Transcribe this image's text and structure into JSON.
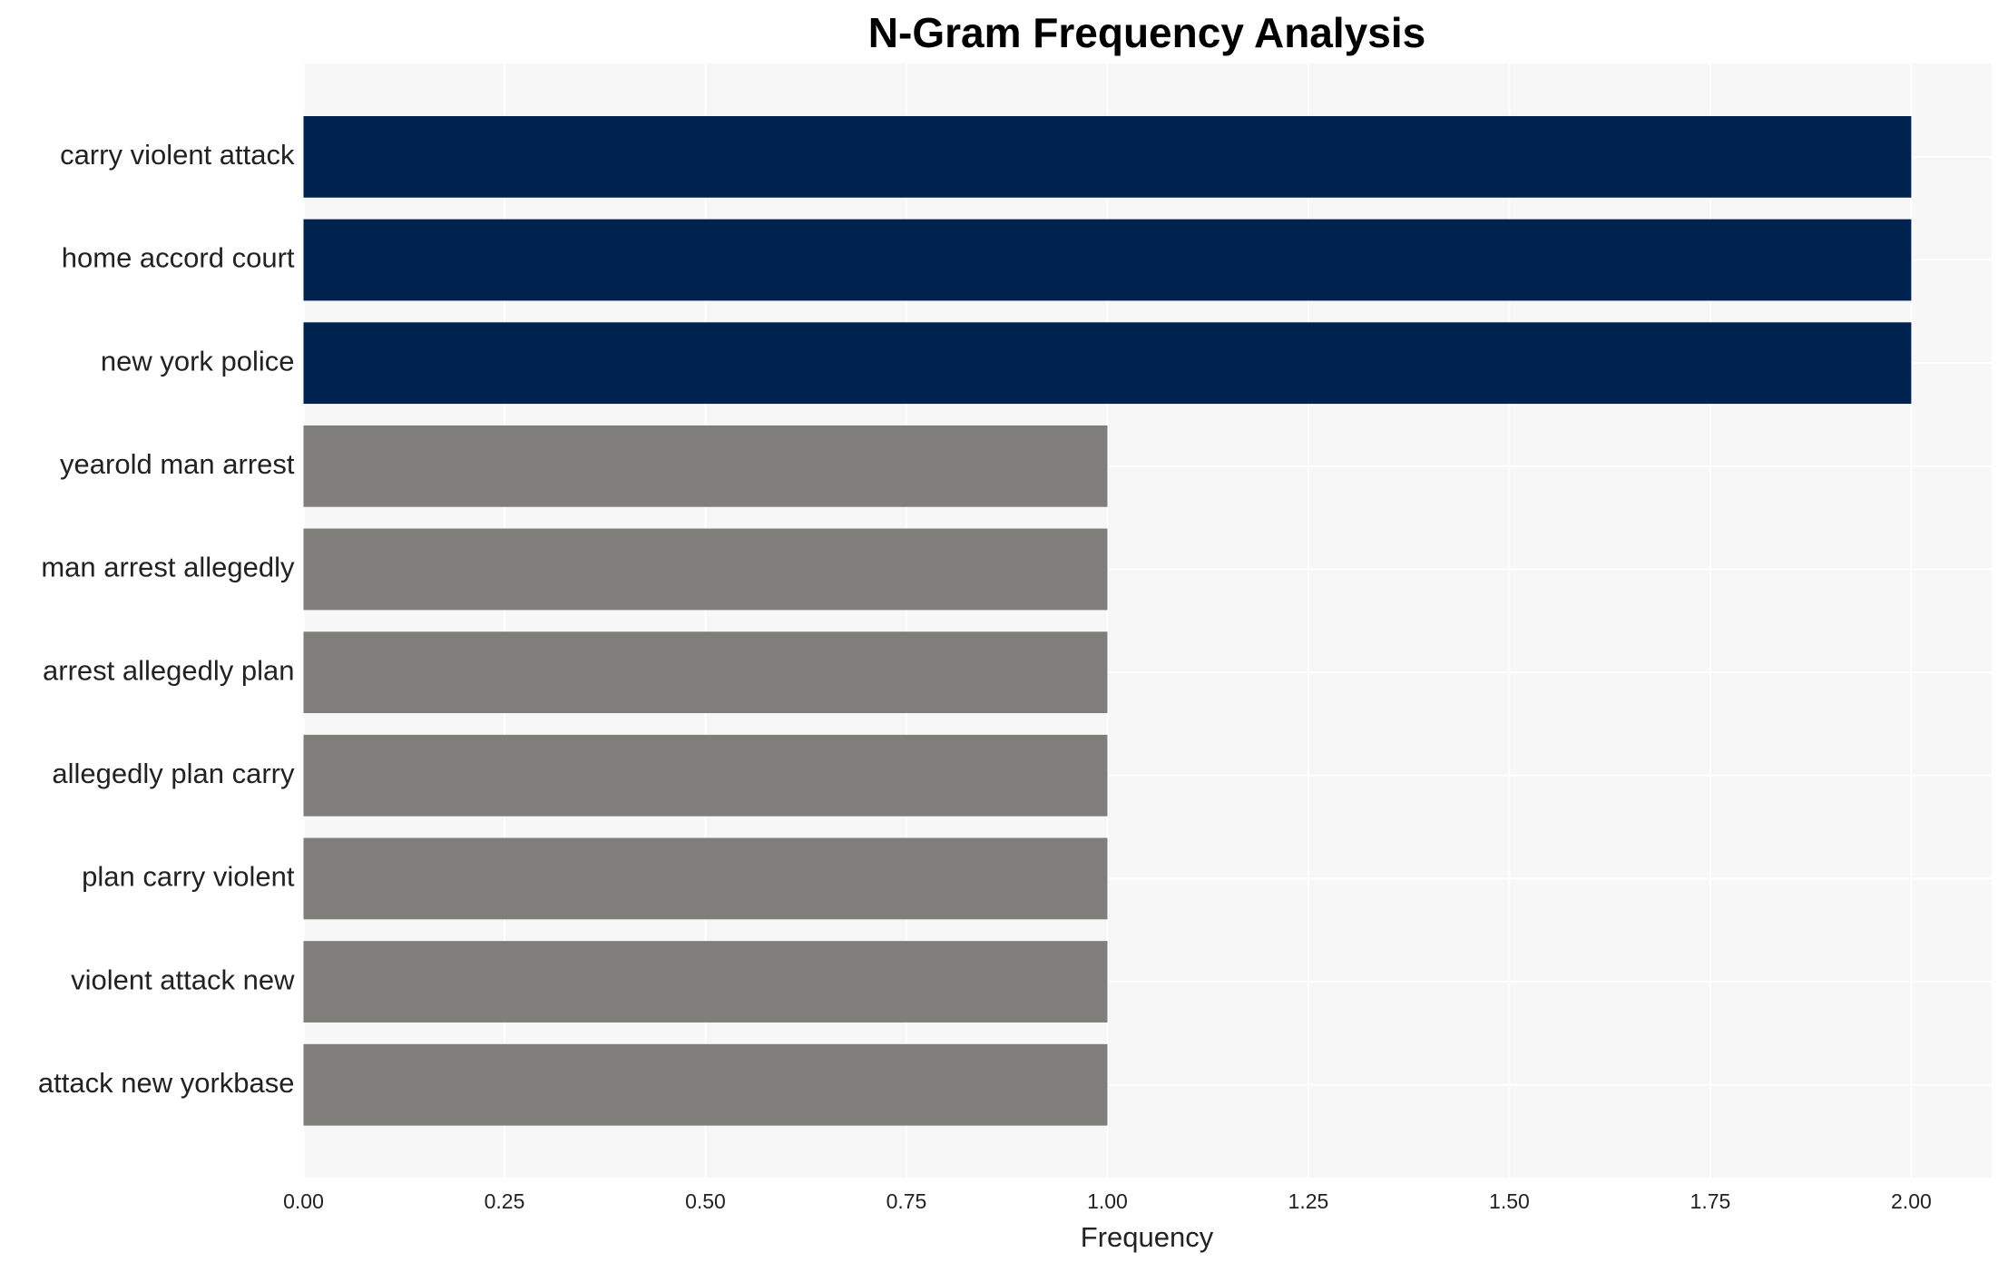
{
  "chart_data": {
    "type": "barh",
    "title": "N-Gram Frequency Analysis",
    "x_label": "Frequency",
    "categories": [
      "carry violent attack",
      "home accord court",
      "new york police",
      "yearold man arrest",
      "man arrest allegedly",
      "arrest allegedly plan",
      "allegedly plan carry",
      "plan carry violent",
      "violent attack new",
      "attack new yorkbase"
    ],
    "values": [
      2,
      2,
      2,
      1,
      1,
      1,
      1,
      1,
      1,
      1
    ],
    "colors": [
      "#00224e",
      "#00224e",
      "#00224e",
      "#7f7e7a",
      "#7f7e7a",
      "#7f7e7a",
      "#7f7e7a",
      "#7f7e7a",
      "#7f7e7a",
      "#7f7e7a"
    ],
    "xlim": [
      0,
      2.1
    ],
    "xticks": [
      {
        "value": 0,
        "label": "0.00"
      },
      {
        "value": 0.25,
        "label": "0.25"
      },
      {
        "value": 0.5,
        "label": "0.50"
      },
      {
        "value": 0.75,
        "label": "0.75"
      },
      {
        "value": 1,
        "label": "1.00"
      },
      {
        "value": 1.25,
        "label": "1.25"
      },
      {
        "value": 1.5,
        "label": "1.50"
      },
      {
        "value": 1.75,
        "label": "1.75"
      },
      {
        "value": 2,
        "label": "2.00"
      }
    ],
    "grid": true
  }
}
